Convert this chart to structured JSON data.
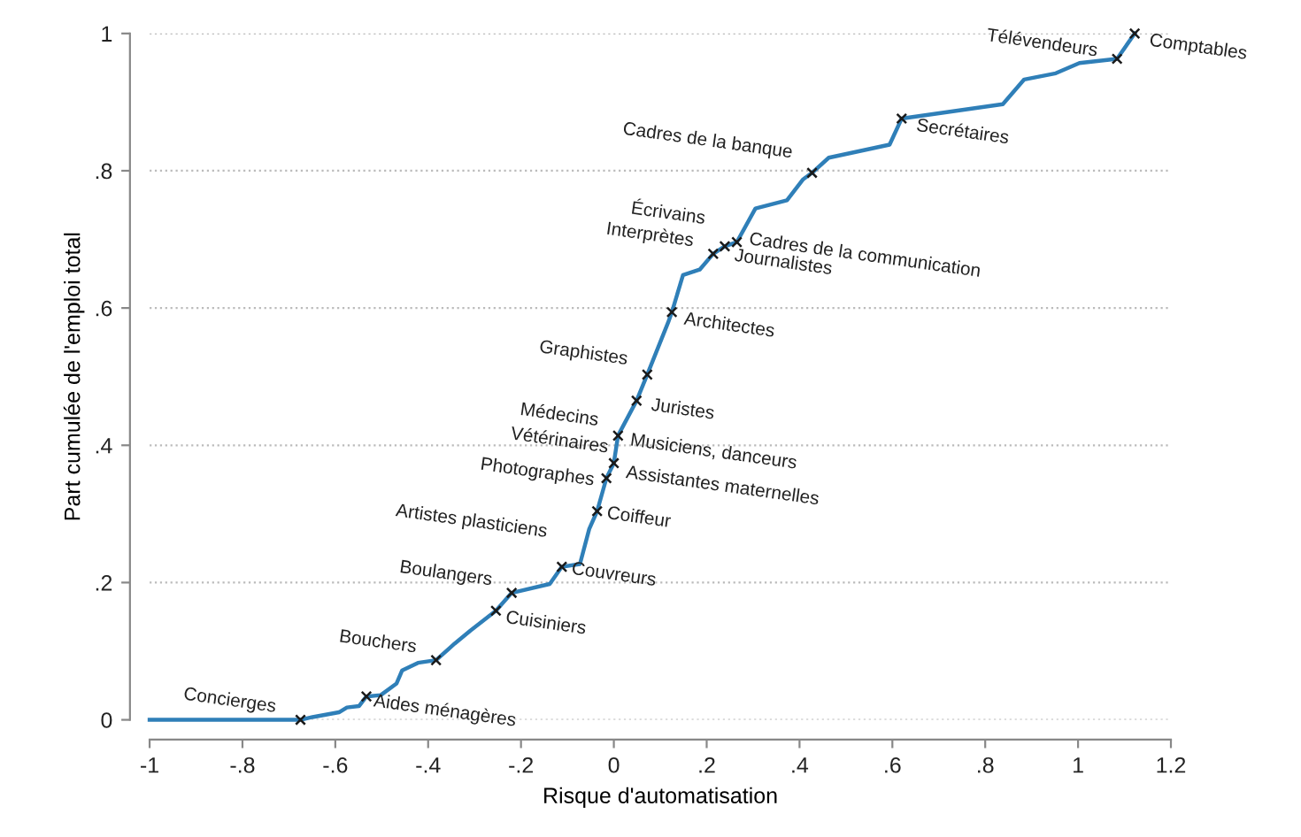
{
  "chart_data": {
    "type": "line",
    "xlabel": "Risque d'automatisation",
    "ylabel": "Part cumulée de l'emploi total",
    "xlim": [
      -1,
      1.2
    ],
    "ylim": [
      0,
      1
    ],
    "xticks": [
      {
        "value": -1,
        "label": "-1"
      },
      {
        "value": -0.8,
        "label": "-.8"
      },
      {
        "value": -0.6,
        "label": "-.6"
      },
      {
        "value": -0.4,
        "label": "-.4"
      },
      {
        "value": -0.2,
        "label": "-.2"
      },
      0,
      {
        "value": 0.2,
        "label": ".2"
      },
      {
        "value": 0.4,
        "label": ".4"
      },
      {
        "value": 0.6,
        "label": ".6"
      },
      {
        "value": 0.8,
        "label": ".8"
      },
      1,
      {
        "value": 1.2,
        "label": "1.2"
      }
    ],
    "yticks": [
      0,
      {
        "value": 0.2,
        "label": ".2"
      },
      {
        "value": 0.4,
        "label": ".4"
      },
      {
        "value": 0.6,
        "label": ".6"
      },
      {
        "value": 0.8,
        "label": ".8"
      },
      1
    ],
    "grid": "y",
    "legend": false,
    "series": [
      {
        "color": "#2f7fb8",
        "marker": "none",
        "line_style": "solid",
        "x": [
          -1,
          -0.675,
          -0.649,
          -0.592,
          -0.575,
          -0.549,
          -0.533,
          -0.502,
          -0.468,
          -0.456,
          -0.422,
          -0.383,
          -0.343,
          -0.309,
          -0.254,
          -0.22,
          -0.138,
          -0.112,
          -0.073,
          -0.053,
          -0.036,
          -0.016,
          0.0,
          0.009,
          0.049,
          0.072,
          0.117,
          0.125,
          0.149,
          0.185,
          0.214,
          0.239,
          0.265,
          0.305,
          0.373,
          0.407,
          0.427,
          0.463,
          0.594,
          0.62,
          0.838,
          0.884,
          0.952,
          1.003,
          1.084,
          1.122
        ],
        "values": [
          0,
          0,
          0.004,
          0.011,
          0.018,
          0.02,
          0.034,
          0.036,
          0.053,
          0.072,
          0.083,
          0.087,
          0.111,
          0.13,
          0.159,
          0.185,
          0.198,
          0.223,
          0.227,
          0.278,
          0.304,
          0.352,
          0.374,
          0.414,
          0.465,
          0.503,
          0.579,
          0.594,
          0.648,
          0.656,
          0.679,
          0.69,
          0.696,
          0.745,
          0.757,
          0.787,
          0.797,
          0.819,
          0.838,
          0.876,
          0.897,
          0.933,
          0.942,
          0.957,
          0.963,
          1.0
        ]
      },
      {
        "type": "scatter",
        "color": "#1a1a1a",
        "marker": "cross",
        "x": [
          -0.675,
          -0.533,
          -0.383,
          -0.254,
          -0.22,
          -0.112,
          -0.036,
          -0.016,
          0.0,
          0.009,
          0.049,
          0.072,
          0.125,
          0.214,
          0.239,
          0.265,
          0.427,
          0.62,
          1.084,
          1.122
        ],
        "values": [
          0,
          0.034,
          0.087,
          0.159,
          0.185,
          0.223,
          0.304,
          0.352,
          0.374,
          0.414,
          0.465,
          0.503,
          0.594,
          0.679,
          0.69,
          0.696,
          0.797,
          0.876,
          0.963,
          1.0
        ]
      }
    ],
    "annotations": [
      {
        "text": "Concierges",
        "x": -0.675,
        "y": 0
      },
      {
        "text": "Aides ménagères",
        "x": -0.533,
        "y": 0.034
      },
      {
        "text": "Bouchers",
        "x": -0.383,
        "y": 0.087
      },
      {
        "text": "Cuisiniers",
        "x": -0.254,
        "y": 0.159
      },
      {
        "text": "Boulangers",
        "x": -0.22,
        "y": 0.185
      },
      {
        "text": "Artistes plasticiens",
        "x": -0.112,
        "y": 0.223
      },
      {
        "text": "Couvreurs",
        "x": -0.112,
        "y": 0.223
      },
      {
        "text": "Coiffeur",
        "x": -0.036,
        "y": 0.304
      },
      {
        "text": "Photographes",
        "x": -0.016,
        "y": 0.352
      },
      {
        "text": "Assistantes maternelles",
        "x": 0.0,
        "y": 0.374
      },
      {
        "text": "Vétérinaires",
        "x": 0.009,
        "y": 0.414
      },
      {
        "text": "Musiciens, danceurs",
        "x": 0.009,
        "y": 0.414
      },
      {
        "text": "Médecins",
        "x": 0.009,
        "y": 0.414
      },
      {
        "text": "Juristes",
        "x": 0.049,
        "y": 0.465
      },
      {
        "text": "Graphistes",
        "x": 0.072,
        "y": 0.503
      },
      {
        "text": "Architectes",
        "x": 0.125,
        "y": 0.594
      },
      {
        "text": "Interprètes",
        "x": 0.214,
        "y": 0.679
      },
      {
        "text": "Écrivains",
        "x": 0.239,
        "y": 0.69
      },
      {
        "text": "Journalistes",
        "x": 0.239,
        "y": 0.69
      },
      {
        "text": "Cadres de la communication",
        "x": 0.265,
        "y": 0.696
      },
      {
        "text": "Cadres de la banque",
        "x": 0.427,
        "y": 0.797
      },
      {
        "text": "Secrétaires",
        "x": 0.62,
        "y": 0.876
      },
      {
        "text": "Télévendeurs",
        "x": 1.084,
        "y": 0.963
      },
      {
        "text": "Comptables",
        "x": 1.122,
        "y": 1.0
      }
    ]
  }
}
